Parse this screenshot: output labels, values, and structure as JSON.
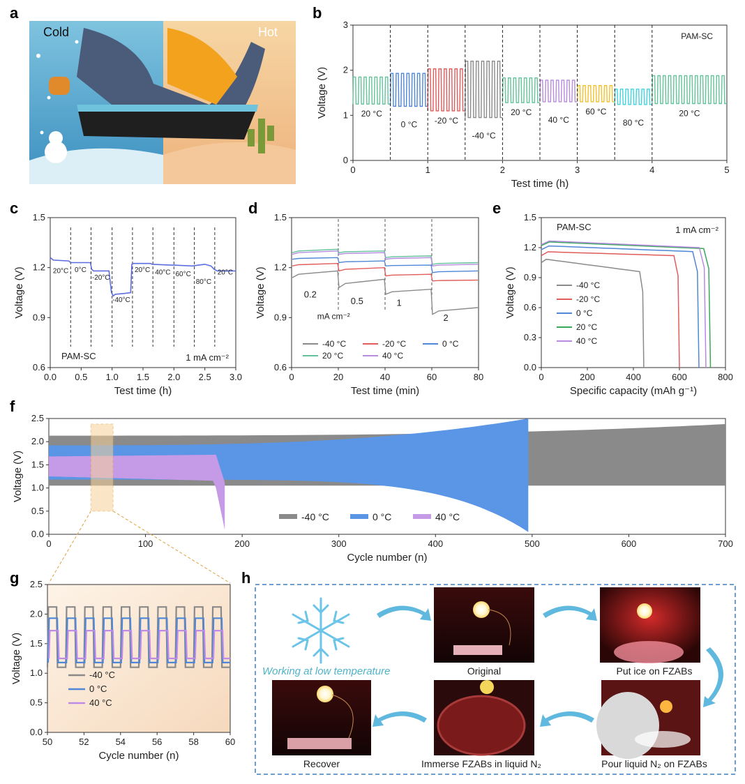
{
  "panel_letters": [
    "a",
    "b",
    "c",
    "d",
    "e",
    "f",
    "g",
    "h"
  ],
  "panel_a": {
    "cold_label": "Cold",
    "hot_label": "Hot"
  },
  "panel_h": {
    "caption_working": "Working at low temperature",
    "captions": [
      "Original",
      "Put ice on FZABs",
      "Pour liquid N₂ on FZABs",
      "Immerse FZABs in liquid N₂",
      "Recover"
    ]
  },
  "colors": {
    "c20": "#63c29a",
    "c0": "#4f86d6",
    "cm20": "#e15b5b",
    "cm40": "#8a8a8a",
    "c40": "#b68be0",
    "c60": "#f2c12e",
    "c80": "#3fd3e0",
    "f0": "#5b95e6"
  },
  "chart_data": [
    {
      "panel": "b",
      "type": "line",
      "xlabel": "Test time (h)",
      "ylabel": "Voltage (V)",
      "xlim": [
        0,
        5
      ],
      "ylim": [
        0,
        3
      ],
      "xticks": [
        "0",
        "1",
        "2",
        "3",
        "4",
        "5"
      ],
      "yticks": [
        "0",
        "1",
        "2",
        "3"
      ],
      "corner_label": "PAM-SC",
      "segments": [
        {
          "t0": 0.0,
          "t1": 0.5,
          "label": "20 °C",
          "vhigh": 1.85,
          "vlow": 1.25,
          "cycles": 7,
          "color": "#63c29a"
        },
        {
          "t0": 0.5,
          "t1": 1.0,
          "label": "0 °C",
          "vhigh": 1.93,
          "vlow": 1.2,
          "cycles": 7,
          "color": "#4f86d6"
        },
        {
          "t0": 1.0,
          "t1": 1.5,
          "label": "-20 °C",
          "vhigh": 2.03,
          "vlow": 1.1,
          "cycles": 7,
          "color": "#e15b5b"
        },
        {
          "t0": 1.5,
          "t1": 2.0,
          "label": "-40 °C",
          "vhigh": 2.2,
          "vlow": 0.95,
          "cycles": 7,
          "color": "#8a8a8a"
        },
        {
          "t0": 2.0,
          "t1": 2.5,
          "label": "20 °C",
          "vhigh": 1.83,
          "vlow": 1.28,
          "cycles": 7,
          "color": "#63c29a"
        },
        {
          "t0": 2.5,
          "t1": 3.0,
          "label": "40 °C",
          "vhigh": 1.78,
          "vlow": 1.3,
          "cycles": 7,
          "color": "#b68be0"
        },
        {
          "t0": 3.0,
          "t1": 3.5,
          "label": "60 °C",
          "vhigh": 1.66,
          "vlow": 1.3,
          "cycles": 7,
          "color": "#f2c12e"
        },
        {
          "t0": 3.5,
          "t1": 4.0,
          "label": "80 °C",
          "vhigh": 1.58,
          "vlow": 1.24,
          "cycles": 7,
          "color": "#3fd3e0"
        },
        {
          "t0": 4.0,
          "t1": 5.0,
          "label": "20 °C",
          "vhigh": 1.88,
          "vlow": 1.26,
          "cycles": 14,
          "color": "#63c29a"
        }
      ]
    },
    {
      "panel": "c",
      "type": "line",
      "xlabel": "Test time (h)",
      "ylabel": "Voltage (V)",
      "xlim": [
        0,
        3
      ],
      "ylim": [
        0.6,
        1.5
      ],
      "xticks": [
        "0.0",
        "0.5",
        "1.0",
        "1.5",
        "2.0",
        "2.5",
        "3.0"
      ],
      "yticks": [
        "0.6",
        "0.9",
        "1.2",
        "1.5"
      ],
      "corner_label": "PAM-SC",
      "current_label": "1 mA cm⁻²",
      "series": [
        {
          "name": "PAM-SC",
          "color": "#5b6ee0",
          "x": [
            0,
            0.05,
            0.3,
            0.33,
            0.65,
            0.67,
            0.7,
            0.95,
            0.99,
            1.02,
            1.05,
            1.2,
            1.3,
            1.32,
            1.35,
            1.62,
            1.65,
            1.95,
            2.0,
            2.3,
            2.4,
            2.5,
            2.6,
            2.65,
            2.7,
            3.0
          ],
          "y": [
            1.26,
            1.245,
            1.24,
            1.23,
            1.23,
            1.19,
            1.18,
            1.18,
            1.05,
            1.03,
            1.04,
            1.045,
            1.05,
            1.22,
            1.225,
            1.225,
            1.22,
            1.215,
            1.215,
            1.21,
            1.215,
            1.22,
            1.21,
            1.19,
            1.18,
            1.18
          ]
        }
      ],
      "segment_labels": [
        {
          "x": 0.17,
          "label": "20°C"
        },
        {
          "x": 0.49,
          "label": "0°C"
        },
        {
          "x": 0.82,
          "label": "-20°C"
        },
        {
          "x": 1.15,
          "label": "-40°C"
        },
        {
          "x": 1.49,
          "label": "20°C"
        },
        {
          "x": 1.82,
          "label": "40°C"
        },
        {
          "x": 2.15,
          "label": "60°C"
        },
        {
          "x": 2.48,
          "label": "80°C"
        },
        {
          "x": 2.83,
          "label": "20°C"
        }
      ],
      "dividers": [
        0.33,
        0.66,
        1.0,
        1.33,
        1.66,
        2.0,
        2.33,
        2.66
      ]
    },
    {
      "panel": "d",
      "type": "line",
      "xlabel": "Test time (min)",
      "ylabel": "Voltage (V)",
      "xlim": [
        0,
        80
      ],
      "ylim": [
        0.6,
        1.5
      ],
      "xticks": [
        "0",
        "20",
        "40",
        "60",
        "80"
      ],
      "yticks": [
        "0.6",
        "0.9",
        "1.2",
        "1.5"
      ],
      "rate_labels": [
        "0.2",
        "0.5",
        "1",
        "2"
      ],
      "rate_unit": "mA cm⁻²",
      "series": [
        {
          "name": "-40 °C",
          "color": "#8a8a8a",
          "levels": [
            [
              1.14,
              1.18
            ],
            [
              1.08,
              1.13
            ],
            [
              1.04,
              1.07
            ],
            [
              0.92,
              0.96
            ]
          ]
        },
        {
          "name": "-20 °C",
          "color": "#e15b5b",
          "levels": [
            [
              1.21,
              1.225
            ],
            [
              1.18,
              1.2
            ],
            [
              1.15,
              1.16
            ],
            [
              1.12,
              1.125
            ]
          ]
        },
        {
          "name": "0 °C",
          "color": "#4f86d6",
          "levels": [
            [
              1.25,
              1.26
            ],
            [
              1.23,
              1.24
            ],
            [
              1.21,
              1.215
            ],
            [
              1.17,
              1.18
            ]
          ]
        },
        {
          "name": "20 °C",
          "color": "#63c29a",
          "levels": [
            [
              1.29,
              1.31
            ],
            [
              1.29,
              1.3
            ],
            [
              1.26,
              1.27
            ],
            [
              1.22,
              1.23
            ]
          ]
        },
        {
          "name": "40 °C",
          "color": "#b68be0",
          "levels": [
            [
              1.28,
              1.3
            ],
            [
              1.28,
              1.29
            ],
            [
              1.25,
              1.26
            ],
            [
              1.21,
              1.22
            ]
          ]
        }
      ]
    },
    {
      "panel": "e",
      "type": "line",
      "xlabel": "Specific capacity (mAh g⁻¹)",
      "ylabel": "Voltage (V)",
      "xlim": [
        0,
        800
      ],
      "ylim": [
        0,
        1.5
      ],
      "xticks": [
        "0",
        "200",
        "400",
        "600",
        "800"
      ],
      "yticks": [
        "0.0",
        "0.3",
        "0.6",
        "0.9",
        "1.2",
        "1.5"
      ],
      "corner_label": "PAM-SC",
      "current_label": "1 mA cm⁻²",
      "series": [
        {
          "name": "-40 °C",
          "color": "#8a8a8a",
          "v_start": 1.09,
          "v_end": 0.96,
          "capacity": 445
        },
        {
          "name": "-20 °C",
          "color": "#e15b5b",
          "v_start": 1.16,
          "v_end": 1.12,
          "capacity": 600
        },
        {
          "name": "0 °C",
          "color": "#4f86d6",
          "v_start": 1.22,
          "v_end": 1.16,
          "capacity": 685
        },
        {
          "name": "20 °C",
          "color": "#3aa85a",
          "v_start": 1.26,
          "v_end": 1.19,
          "capacity": 735
        },
        {
          "name": "40 °C",
          "color": "#b68be0",
          "v_start": 1.27,
          "v_end": 1.2,
          "capacity": 715
        }
      ]
    },
    {
      "panel": "f",
      "type": "area",
      "xlabel": "Cycle number (n)",
      "ylabel": "Voltage (V)",
      "xlim": [
        0,
        700
      ],
      "ylim": [
        0,
        2.5
      ],
      "xticks": [
        "0",
        "100",
        "200",
        "300",
        "400",
        "500",
        "600",
        "700"
      ],
      "yticks": [
        "0.0",
        "0.5",
        "1.0",
        "1.5",
        "2.0",
        "2.5"
      ],
      "series": [
        {
          "name": "-40 °C",
          "color": "#8a8a8a",
          "cycles_end": 700,
          "charge_start": 2.13,
          "charge_end": 2.38,
          "discharge_start": 1.05,
          "discharge_end": 1.05
        },
        {
          "name": "0 °C",
          "color": "#5b95e6",
          "cycles_end": 496,
          "charge_start": 1.92,
          "charge_end": 2.5,
          "discharge_start": 1.18,
          "discharge_end": 0.05
        },
        {
          "name": "40 °C",
          "color": "#c59ae6",
          "cycles_end": 182,
          "charge_start": 1.68,
          "charge_end": 1.72,
          "discharge_start": 1.25,
          "discharge_end": 0.1
        }
      ],
      "highlight": [
        50,
        60
      ]
    },
    {
      "panel": "g",
      "type": "line",
      "xlabel": "Cycle number (n)",
      "ylabel": "Voltage (V)",
      "xlim": [
        50,
        60
      ],
      "ylim": [
        0,
        2.5
      ],
      "xticks": [
        "50",
        "52",
        "54",
        "56",
        "58",
        "60"
      ],
      "yticks": [
        "0.0",
        "0.5",
        "1.0",
        "1.5",
        "2.0",
        "2.5"
      ],
      "series": [
        {
          "name": "-40 °C",
          "color": "#8a8a8a",
          "vhigh": 2.12,
          "vlow": 1.1
        },
        {
          "name": "0 °C",
          "color": "#4f86d6",
          "vhigh": 1.93,
          "vlow": 1.18
        },
        {
          "name": "40 °C",
          "color": "#c08be6",
          "vhigh": 1.72,
          "vlow": 1.25
        }
      ]
    }
  ]
}
